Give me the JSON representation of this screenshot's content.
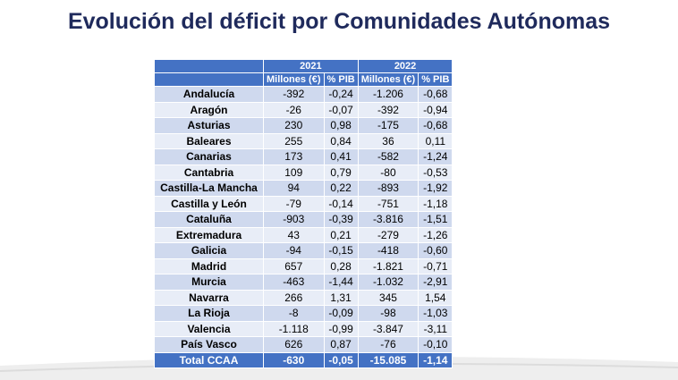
{
  "title": "Evolución del déficit por Comunidades Autónomas",
  "table": {
    "years": [
      "2021",
      "2022"
    ],
    "subheaders": [
      "Millones (€)",
      "% PIB",
      "Millones (€)",
      "% PIB"
    ],
    "rows": [
      [
        "Andalucía",
        "-392",
        "-0,24",
        "-1.206",
        "-0,68"
      ],
      [
        "Aragón",
        "-26",
        "-0,07",
        "-392",
        "-0,94"
      ],
      [
        "Asturias",
        "230",
        "0,98",
        "-175",
        "-0,68"
      ],
      [
        "Baleares",
        "255",
        "0,84",
        "36",
        "0,11"
      ],
      [
        "Canarias",
        "173",
        "0,41",
        "-582",
        "-1,24"
      ],
      [
        "Cantabria",
        "109",
        "0,79",
        "-80",
        "-0,53"
      ],
      [
        "Castilla-La Mancha",
        "94",
        "0,22",
        "-893",
        "-1,92"
      ],
      [
        "Castilla y León",
        "-79",
        "-0,14",
        "-751",
        "-1,18"
      ],
      [
        "Cataluña",
        "-903",
        "-0,39",
        "-3.816",
        "-1,51"
      ],
      [
        "Extremadura",
        "43",
        "0,21",
        "-279",
        "-1,26"
      ],
      [
        "Galicia",
        "-94",
        "-0,15",
        "-418",
        "-0,60"
      ],
      [
        "Madrid",
        "657",
        "0,28",
        "-1.821",
        "-0,71"
      ],
      [
        "Murcia",
        "-463",
        "-1,44",
        "-1.032",
        "-2,91"
      ],
      [
        "Navarra",
        "266",
        "1,31",
        "345",
        "1,54"
      ],
      [
        "La Rioja",
        "-8",
        "-0,09",
        "-98",
        "-1,03"
      ],
      [
        "Valencia",
        "-1.118",
        "-0,99",
        "-3.847",
        "-3,11"
      ],
      [
        "País Vasco",
        "626",
        "0,87",
        "-76",
        "-0,10"
      ]
    ],
    "total": [
      "Total CCAA",
      "-630",
      "-0,05",
      "-15.085",
      "-1,14"
    ]
  }
}
